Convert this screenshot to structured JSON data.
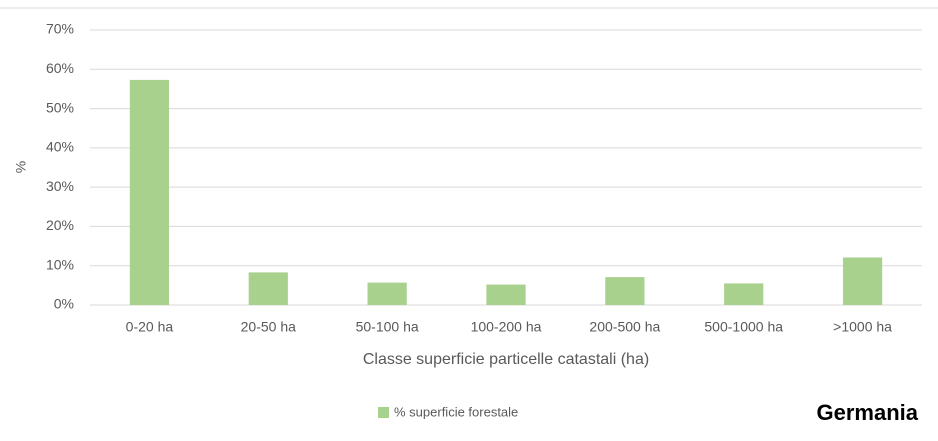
{
  "chart_data": {
    "type": "bar",
    "categories": [
      "0-20 ha",
      "20-50 ha",
      "50-100 ha",
      "100-200 ha",
      "200-500 ha",
      "500-1000 ha",
      ">1000 ha"
    ],
    "series": [
      {
        "name": "% superficie forestale",
        "color": "#a9d18e",
        "values": [
          57.3,
          8.3,
          5.7,
          5.2,
          7.1,
          5.5,
          12.1
        ]
      }
    ],
    "ylim": [
      0,
      70
    ],
    "yticks": [
      {
        "value": 0,
        "label": "0%"
      },
      {
        "value": 10,
        "label": "10%"
      },
      {
        "value": 20,
        "label": "20%"
      },
      {
        "value": 30,
        "label": "30%"
      },
      {
        "value": 40,
        "label": "40%"
      },
      {
        "value": 50,
        "label": "50%"
      },
      {
        "value": 60,
        "label": "60%"
      },
      {
        "value": 70,
        "label": "70%"
      }
    ],
    "y_label": "%",
    "x_label": "Classe superficie particelle catastali (ha)",
    "annotation": "Germania",
    "grid": true
  }
}
